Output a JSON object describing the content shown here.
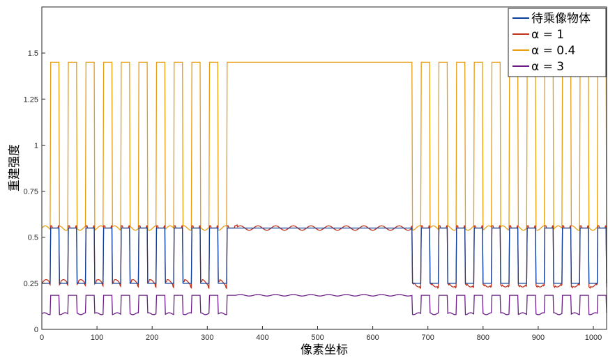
{
  "chart_data": {
    "type": "line",
    "title": "",
    "xlabel": "像素坐标",
    "ylabel": "重建强度",
    "xlim": [
      0,
      1024
    ],
    "ylim": [
      0,
      1.75
    ],
    "x_ticks": [
      "0",
      "100",
      "200",
      "300",
      "400",
      "500",
      "600",
      "700",
      "800",
      "900",
      "1000"
    ],
    "y_ticks": [
      "0",
      "0.25",
      "0.5",
      "0.75",
      "1",
      "1.25",
      "1.5"
    ],
    "grid": false,
    "legend_position": "top-right",
    "structure": {
      "period": 32,
      "open_width": 16,
      "left_slits_end": 352,
      "center_block": [
        352,
        672
      ]
    },
    "series": [
      {
        "name": "待乘像物体",
        "color": "#0b3f9a",
        "levels": {
          "high": 0.55,
          "low": 0.25
        }
      },
      {
        "name": "α = 1",
        "color": "#c0321b",
        "levels": {
          "high": 0.55,
          "low": 0.25
        }
      },
      {
        "name": "α = 0.4",
        "color": "#e89c10",
        "levels": {
          "high": 1.45,
          "low": 0.55
        }
      },
      {
        "name": "α = 3",
        "color": "#6a1d86",
        "levels": {
          "high": 0.185,
          "low": 0.085
        }
      }
    ]
  }
}
